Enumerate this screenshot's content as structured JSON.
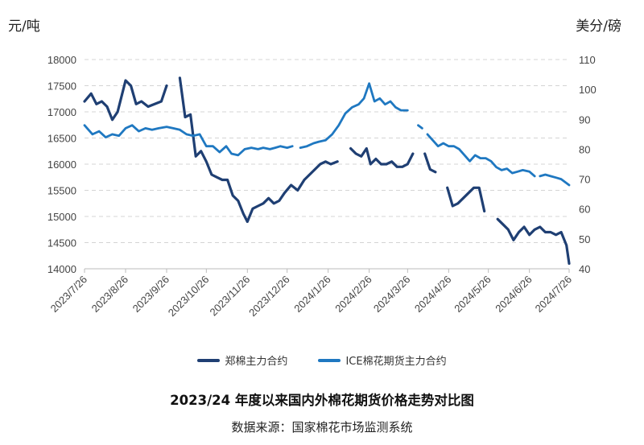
{
  "units": {
    "left": "元/吨",
    "right": "美分/磅"
  },
  "title": "2023/24 年度以来国内外棉花期货价格走势对比图",
  "source": "数据来源：国家棉花市场监测系统",
  "legend": [
    {
      "label": "郑棉主力合约",
      "color": "#1f3f73"
    },
    {
      "label": "ICE棉花期货主力合约",
      "color": "#1f78c1"
    }
  ],
  "chart_data": {
    "type": "line",
    "x_ticks": [
      "2023/7/26",
      "2023/8/26",
      "2023/9/26",
      "2023/10/26",
      "2023/11/26",
      "2023/12/26",
      "2024/1/26",
      "2024/2/26",
      "2024/3/26",
      "2024/4/26",
      "2024/5/26",
      "2024/6/26",
      "2024/7/26"
    ],
    "y_left": {
      "min": 14000,
      "max": 18000,
      "step": 500
    },
    "y_right": {
      "min": 40,
      "max": 110,
      "step": 10
    },
    "grid": true,
    "legend_position": "bottom",
    "series": [
      {
        "name": "郑棉主力合约",
        "axis": "left",
        "color": "#1f3f73",
        "points": [
          [
            "2023/7/26",
            17200
          ],
          [
            "2023/7/31",
            17350
          ],
          [
            "2023/8/4",
            17150
          ],
          [
            "2023/8/8",
            17200
          ],
          [
            "2023/8/12",
            17100
          ],
          [
            "2023/8/16",
            16850
          ],
          [
            "2023/8/20",
            17000
          ],
          [
            "2023/8/26",
            17600
          ],
          [
            "2023/8/30",
            17500
          ],
          [
            "2023/9/3",
            17150
          ],
          [
            "2023/9/7",
            17200
          ],
          [
            "2023/9/12",
            17100
          ],
          [
            "2023/9/17",
            17150
          ],
          [
            "2023/9/22",
            17200
          ],
          [
            "2023/9/26",
            17500
          ],
          null,
          [
            "2023/10/6",
            17650
          ],
          [
            "2023/10/10",
            16900
          ],
          [
            "2023/10/14",
            16950
          ],
          [
            "2023/10/18",
            16150
          ],
          [
            "2023/10/22",
            16250
          ],
          [
            "2023/10/26",
            16050
          ],
          [
            "2023/10/30",
            15800
          ],
          [
            "2023/11/3",
            15750
          ],
          [
            "2023/11/7",
            15700
          ],
          [
            "2023/11/11",
            15700
          ],
          [
            "2023/11/15",
            15400
          ],
          [
            "2023/11/19",
            15300
          ],
          [
            "2023/11/23",
            15050
          ],
          [
            "2023/11/26",
            14900
          ],
          [
            "2023/11/30",
            15150
          ],
          [
            "2023/12/4",
            15200
          ],
          [
            "2023/12/8",
            15250
          ],
          [
            "2023/12/12",
            15350
          ],
          [
            "2023/12/16",
            15250
          ],
          [
            "2023/12/20",
            15300
          ],
          [
            "2023/12/24",
            15450
          ],
          [
            "2023/12/29",
            15600
          ],
          [
            "2024/1/3",
            15500
          ],
          [
            "2024/1/8",
            15700
          ],
          [
            "2024/1/12",
            15800
          ],
          [
            "2024/1/16",
            15900
          ],
          [
            "2024/1/20",
            16000
          ],
          [
            "2024/1/24",
            16050
          ],
          [
            "2024/1/28",
            16000
          ],
          [
            "2024/2/2",
            16050
          ],
          null,
          [
            "2024/2/12",
            16300
          ],
          [
            "2024/2/16",
            16200
          ],
          [
            "2024/2/20",
            16150
          ],
          [
            "2024/2/24",
            16300
          ],
          [
            "2024/2/27",
            16000
          ],
          [
            "2024/3/2",
            16100
          ],
          [
            "2024/3/6",
            16000
          ],
          [
            "2024/3/10",
            16000
          ],
          [
            "2024/3/14",
            16050
          ],
          [
            "2024/3/18",
            15950
          ],
          [
            "2024/3/22",
            15950
          ],
          [
            "2024/3/26",
            16000
          ],
          [
            "2024/3/30",
            16200
          ],
          null,
          [
            "2024/4/8",
            16200
          ],
          [
            "2024/4/12",
            15900
          ],
          [
            "2024/4/16",
            15850
          ],
          null,
          [
            "2024/4/25",
            15550
          ],
          [
            "2024/4/29",
            15200
          ],
          [
            "2024/5/3",
            15250
          ],
          [
            "2024/5/7",
            15350
          ],
          [
            "2024/5/11",
            15450
          ],
          [
            "2024/5/15",
            15550
          ],
          [
            "2024/5/19",
            15550
          ],
          [
            "2024/5/23",
            15100
          ],
          null,
          [
            "2024/6/2",
            14950
          ],
          [
            "2024/6/6",
            14850
          ],
          [
            "2024/6/10",
            14750
          ],
          [
            "2024/6/14",
            14550
          ],
          [
            "2024/6/18",
            14700
          ],
          [
            "2024/6/22",
            14800
          ],
          [
            "2024/6/26",
            14650
          ],
          [
            "2024/6/30",
            14750
          ],
          [
            "2024/7/4",
            14800
          ],
          [
            "2024/7/8",
            14700
          ],
          [
            "2024/7/12",
            14700
          ],
          [
            "2024/7/16",
            14650
          ],
          [
            "2024/7/20",
            14700
          ],
          [
            "2024/7/24",
            14450
          ],
          [
            "2024/7/26",
            14100
          ]
        ]
      },
      {
        "name": "ICE棉花期货主力合约",
        "axis": "right",
        "color": "#1f78c1",
        "points": [
          [
            "2023/7/26",
            88
          ],
          [
            "2023/8/1",
            85
          ],
          [
            "2023/8/6",
            86
          ],
          [
            "2023/8/11",
            84
          ],
          [
            "2023/8/16",
            85
          ],
          [
            "2023/8/21",
            84.5
          ],
          [
            "2023/8/26",
            87
          ],
          [
            "2023/8/31",
            88
          ],
          [
            "2023/9/5",
            86
          ],
          [
            "2023/9/10",
            87
          ],
          [
            "2023/9/15",
            86.5
          ],
          [
            "2023/9/20",
            87
          ],
          [
            "2023/9/26",
            87.5
          ],
          [
            "2023/10/1",
            87
          ],
          [
            "2023/10/6",
            86.5
          ],
          [
            "2023/10/11",
            85
          ],
          [
            "2023/10/16",
            84.5
          ],
          [
            "2023/10/21",
            85
          ],
          [
            "2023/10/26",
            81
          ],
          [
            "2023/10/31",
            81
          ],
          [
            "2023/11/5",
            79
          ],
          [
            "2023/11/10",
            81
          ],
          [
            "2023/11/14",
            78.5
          ],
          [
            "2023/11/19",
            78
          ],
          [
            "2023/11/24",
            80
          ],
          [
            "2023/11/29",
            80.5
          ],
          [
            "2023/12/4",
            80
          ],
          [
            "2023/12/8",
            80.5
          ],
          [
            "2023/12/13",
            80
          ],
          [
            "2023/12/17",
            80.5
          ],
          [
            "2023/12/21",
            81
          ],
          [
            "2023/12/26",
            80.5
          ],
          [
            "2023/12/30",
            81
          ],
          null,
          [
            "2024/1/5",
            80.5
          ],
          [
            "2024/1/10",
            81
          ],
          [
            "2024/1/15",
            82
          ],
          [
            "2024/1/19",
            82.5
          ],
          [
            "2024/1/24",
            83
          ],
          [
            "2024/1/29",
            85
          ],
          [
            "2024/2/3",
            88
          ],
          [
            "2024/2/8",
            92
          ],
          [
            "2024/2/13",
            94
          ],
          [
            "2024/2/18",
            95
          ],
          [
            "2024/2/22",
            97
          ],
          [
            "2024/2/26",
            102
          ],
          [
            "2024/3/1",
            96
          ],
          [
            "2024/3/5",
            97
          ],
          [
            "2024/3/9",
            95
          ],
          [
            "2024/3/13",
            96
          ],
          [
            "2024/3/17",
            94
          ],
          [
            "2024/3/21",
            93
          ],
          [
            "2024/3/26",
            93
          ],
          null,
          [
            "2024/4/3",
            88
          ],
          [
            "2024/4/6",
            87
          ],
          null,
          [
            "2024/4/10",
            85
          ],
          [
            "2024/4/14",
            83
          ],
          [
            "2024/4/18",
            81
          ],
          [
            "2024/4/22",
            82
          ],
          [
            "2024/4/26",
            81
          ],
          [
            "2024/4/30",
            81
          ],
          [
            "2024/5/4",
            80
          ],
          [
            "2024/5/8",
            78
          ],
          [
            "2024/5/12",
            76
          ],
          [
            "2024/5/16",
            78
          ],
          [
            "2024/5/20",
            77
          ],
          [
            "2024/5/24",
            77
          ],
          [
            "2024/5/28",
            76
          ],
          [
            "2024/6/1",
            74
          ],
          [
            "2024/6/5",
            73
          ],
          [
            "2024/6/9",
            73.5
          ],
          [
            "2024/6/13",
            72
          ],
          [
            "2024/6/17",
            72.5
          ],
          [
            "2024/6/21",
            73
          ],
          [
            "2024/6/26",
            72.5
          ],
          [
            "2024/6/30",
            71
          ],
          null,
          [
            "2024/7/4",
            71
          ],
          [
            "2024/7/8",
            71.5
          ],
          [
            "2024/7/12",
            71
          ],
          [
            "2024/7/16",
            70.5
          ],
          [
            "2024/7/20",
            70
          ],
          [
            "2024/7/26",
            68
          ]
        ]
      }
    ]
  }
}
